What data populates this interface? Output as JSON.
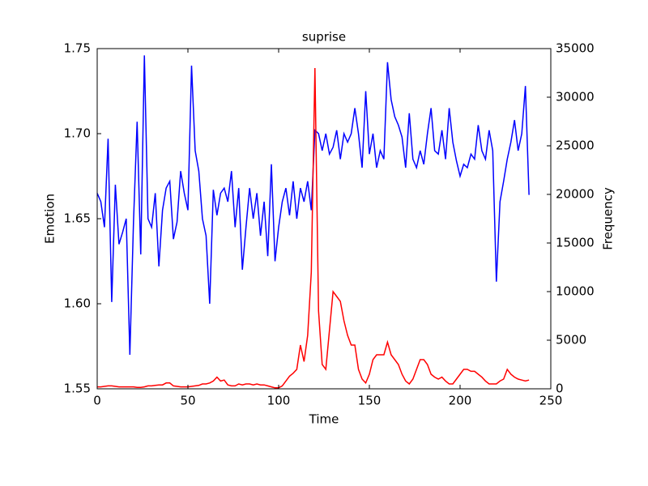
{
  "chart_data": {
    "type": "line",
    "title": "suprise",
    "xlabel": "Time",
    "ylabel": "Emotion",
    "y2label": "Frequency",
    "x": [
      0,
      2,
      4,
      6,
      8,
      10,
      12,
      14,
      16,
      18,
      20,
      22,
      24,
      26,
      28,
      30,
      32,
      34,
      36,
      38,
      40,
      42,
      44,
      46,
      48,
      50,
      52,
      54,
      56,
      58,
      60,
      62,
      64,
      66,
      68,
      70,
      72,
      74,
      76,
      78,
      80,
      82,
      84,
      86,
      88,
      90,
      92,
      94,
      96,
      98,
      100,
      102,
      104,
      106,
      108,
      110,
      112,
      114,
      116,
      118,
      120,
      122,
      124,
      126,
      128,
      130,
      132,
      134,
      136,
      138,
      140,
      142,
      144,
      146,
      148,
      150,
      152,
      154,
      156,
      158,
      160,
      162,
      164,
      166,
      168,
      170,
      172,
      174,
      176,
      178,
      180,
      182,
      184,
      186,
      188,
      190,
      192,
      194,
      196,
      198,
      200,
      202,
      204,
      206,
      208,
      210,
      212,
      214,
      216,
      218,
      220,
      222,
      224,
      226,
      228,
      230,
      232,
      234,
      236,
      238
    ],
    "series": [
      {
        "name": "Emotion",
        "color": "#0000ff",
        "axis": "y",
        "values": [
          1.665,
          1.66,
          1.645,
          1.697,
          1.601,
          1.67,
          1.635,
          1.642,
          1.65,
          1.57,
          1.648,
          1.707,
          1.629,
          1.746,
          1.65,
          1.645,
          1.665,
          1.622,
          1.655,
          1.668,
          1.672,
          1.638,
          1.648,
          1.678,
          1.665,
          1.655,
          1.74,
          1.69,
          1.678,
          1.65,
          1.64,
          1.6,
          1.667,
          1.652,
          1.665,
          1.668,
          1.66,
          1.678,
          1.645,
          1.668,
          1.62,
          1.645,
          1.668,
          1.65,
          1.665,
          1.64,
          1.66,
          1.628,
          1.682,
          1.625,
          1.645,
          1.66,
          1.668,
          1.652,
          1.672,
          1.65,
          1.668,
          1.66,
          1.672,
          1.655,
          1.702,
          1.7,
          1.69,
          1.7,
          1.688,
          1.692,
          1.702,
          1.685,
          1.7,
          1.695,
          1.7,
          1.715,
          1.7,
          1.68,
          1.725,
          1.688,
          1.7,
          1.68,
          1.69,
          1.685,
          1.742,
          1.72,
          1.71,
          1.705,
          1.698,
          1.68,
          1.712,
          1.685,
          1.68,
          1.69,
          1.682,
          1.7,
          1.715,
          1.69,
          1.688,
          1.702,
          1.685,
          1.715,
          1.695,
          1.684,
          1.675,
          1.682,
          1.68,
          1.688,
          1.685,
          1.705,
          1.69,
          1.685,
          1.702,
          1.69,
          1.613,
          1.66,
          1.672,
          1.685,
          1.695,
          1.708,
          1.69,
          1.7,
          1.728,
          1.664
        ]
      },
      {
        "name": "Frequency",
        "color": "#ff0000",
        "axis": "y2",
        "values": [
          200,
          200,
          250,
          300,
          300,
          250,
          200,
          200,
          200,
          200,
          200,
          150,
          150,
          200,
          300,
          300,
          350,
          400,
          400,
          600,
          600,
          300,
          250,
          200,
          200,
          200,
          250,
          300,
          350,
          500,
          500,
          600,
          800,
          1200,
          800,
          900,
          400,
          300,
          300,
          500,
          400,
          500,
          500,
          400,
          500,
          400,
          400,
          300,
          200,
          100,
          100,
          300,
          800,
          1300,
          1600,
          2000,
          4500,
          2800,
          5500,
          12000,
          33000,
          8000,
          2500,
          2000,
          6000,
          10000,
          9500,
          9000,
          7000,
          5500,
          4500,
          4500,
          2000,
          1000,
          600,
          1500,
          3000,
          3500,
          3500,
          3500,
          4800,
          3500,
          3000,
          2500,
          1500,
          800,
          500,
          1000,
          2000,
          3000,
          3000,
          2500,
          1500,
          1200,
          1000,
          1200,
          800,
          500,
          500,
          1000,
          1500,
          2000,
          2000,
          1800,
          1800,
          1500,
          1200,
          800,
          500,
          500,
          500,
          800,
          1000,
          2000,
          1500,
          1200,
          1000,
          900,
          800,
          900
        ]
      }
    ],
    "xlim": [
      0,
      250
    ],
    "xticks": [
      0,
      50,
      100,
      150,
      200,
      250
    ],
    "ylim": [
      1.55,
      1.75
    ],
    "yticks": [
      1.55,
      {
        "value": 1.6,
        "label": "1.60"
      },
      1.65,
      {
        "value": 1.7,
        "label": "1.70"
      },
      1.75
    ],
    "y2lim": [
      0,
      35000
    ],
    "y2ticks": [
      0,
      5000,
      10000,
      15000,
      20000,
      25000,
      30000,
      35000
    ]
  }
}
